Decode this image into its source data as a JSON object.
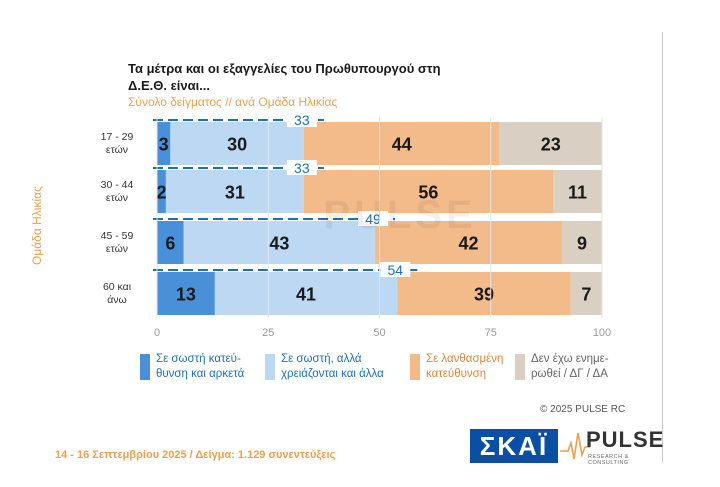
{
  "header": {
    "title": "Τα μέτρα και οι εξαγγελίες του Πρωθυπουργού στη Δ.Ε.Θ. είναι...",
    "subtitle": "Σύνολο δείγματος // ανά Ομάδα Ηλικίας"
  },
  "chart_data": {
    "type": "bar",
    "orientation": "horizontal",
    "stacked": true,
    "ylabel": "Ομάδα Ηλικίας",
    "categories": [
      "17 - 29 ετών",
      "30 - 44 ετών",
      "45 - 59 ετών",
      "60 και άνω"
    ],
    "category_lines": [
      [
        "17 - 29",
        "ετών"
      ],
      [
        "30 - 44",
        "ετών"
      ],
      [
        "45 - 59",
        "ετών"
      ],
      [
        "60 και",
        "άνω"
      ]
    ],
    "xlim": [
      0,
      100
    ],
    "xticks": [
      0,
      25,
      50,
      75,
      100
    ],
    "series": [
      {
        "name": "Σε σωστή κατεύθυνση και αρκετά",
        "values": [
          3,
          2,
          6,
          13
        ],
        "color": "#4a90d9"
      },
      {
        "name": "Σε σωστή, αλλά χρειάζονται και άλλα",
        "values": [
          30,
          31,
          43,
          41
        ],
        "color": "#bcd8f2"
      },
      {
        "name": "Σε λανθασμένη κατεύθυνση",
        "values": [
          44,
          56,
          42,
          39
        ],
        "color": "#f4bb8a"
      },
      {
        "name": "Δεν έχω ενημερωθεί / ΔΓ / ΔΑ",
        "values": [
          23,
          11,
          9,
          7
        ],
        "color": "#d9cfc3"
      }
    ],
    "annotations": [
      33,
      33,
      49,
      54
    ]
  },
  "legend": [
    {
      "line1": "Σε σωστή κατεύ-",
      "line2": "θυνση και αρκετά",
      "color": "#4a90d9",
      "style": "blue"
    },
    {
      "line1": "Σε σωστή, αλλά",
      "line2": "χρειάζονται και άλλα",
      "color": "#bcd8f2",
      "style": "blue"
    },
    {
      "line1": "Σε λανθασμένη",
      "line2": "κατεύθυνση",
      "color": "#f4bb8a",
      "style": "orange"
    },
    {
      "line1": "Δεν έχω ενημε-",
      "line2": "ρωθεί / ΔΓ / ΔΑ",
      "color": "#d9cfc3",
      "style": "gray"
    }
  ],
  "watermark": "PULSE",
  "copyright": "© 2025 PULSE RC",
  "footer": "14 - 16 Σεπτεμβρίου 2025  /  Δείγμα:  1.129 συνεντεύξεις",
  "logos": {
    "skai": "ΣΚΑΪ",
    "pulse": "PULSE",
    "pulse_sub": "RESEARCH & CONSULTING"
  }
}
